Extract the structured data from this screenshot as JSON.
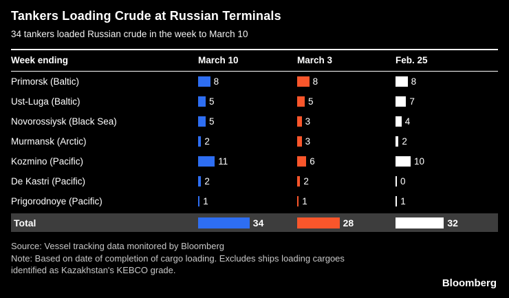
{
  "header": {
    "title": "Tankers Loading Crude at Russian Terminals",
    "subtitle": "34 tankers loaded Russian crude in the week to March 10"
  },
  "table": {
    "label_header": "Week ending",
    "columns": [
      {
        "label": "March 10",
        "color": "#2e6ef2"
      },
      {
        "label": "March 3",
        "color": "#f9562b"
      },
      {
        "label": "Feb. 25",
        "color": "#ffffff"
      }
    ],
    "rows": [
      {
        "label": "Primorsk (Baltic)",
        "values": [
          8,
          8,
          8
        ]
      },
      {
        "label": "Ust-Luga (Baltic)",
        "values": [
          5,
          5,
          7
        ]
      },
      {
        "label": "Novorossiysk (Black Sea)",
        "values": [
          5,
          3,
          4
        ]
      },
      {
        "label": "Murmansk (Arctic)",
        "values": [
          2,
          3,
          2
        ]
      },
      {
        "label": "Kozmino (Pacific)",
        "values": [
          11,
          6,
          10
        ]
      },
      {
        "label": "De Kastri (Pacific)",
        "values": [
          2,
          2,
          0
        ]
      },
      {
        "label": "Prigorodnoye (Pacific)",
        "values": [
          1,
          1,
          1
        ]
      }
    ],
    "total": {
      "label": "Total",
      "values": [
        34,
        28,
        32
      ]
    }
  },
  "footer": {
    "source": "Source: Vessel tracking data monitored by Bloomberg",
    "note": "Note: Based on date of completion of cargo loading. Excludes ships loading cargoes identified as Kazakhstan's KEBCO grade.",
    "brand": "Bloomberg"
  },
  "chart_data": {
    "type": "bar",
    "orientation": "horizontal",
    "title": "Tankers Loading Crude at Russian Terminals",
    "subtitle": "34 tankers loaded Russian crude in the week to March 10",
    "categories": [
      "Primorsk (Baltic)",
      "Ust-Luga (Baltic)",
      "Novorossiysk (Black Sea)",
      "Murmansk (Arctic)",
      "Kozmino (Pacific)",
      "De Kastri (Pacific)",
      "Prigorodnoye (Pacific)"
    ],
    "series": [
      {
        "name": "March 10",
        "color": "#2e6ef2",
        "values": [
          8,
          5,
          5,
          2,
          11,
          2,
          1
        ],
        "total": 34
      },
      {
        "name": "March 3",
        "color": "#f9562b",
        "values": [
          8,
          5,
          3,
          3,
          6,
          2,
          1
        ],
        "total": 28
      },
      {
        "name": "Feb. 25",
        "color": "#ffffff",
        "values": [
          8,
          7,
          4,
          2,
          10,
          0,
          1
        ],
        "total": 32
      }
    ],
    "value_labels": true,
    "xlim": [
      0,
      34
    ],
    "grid": false,
    "legend_position": "column-headers"
  }
}
